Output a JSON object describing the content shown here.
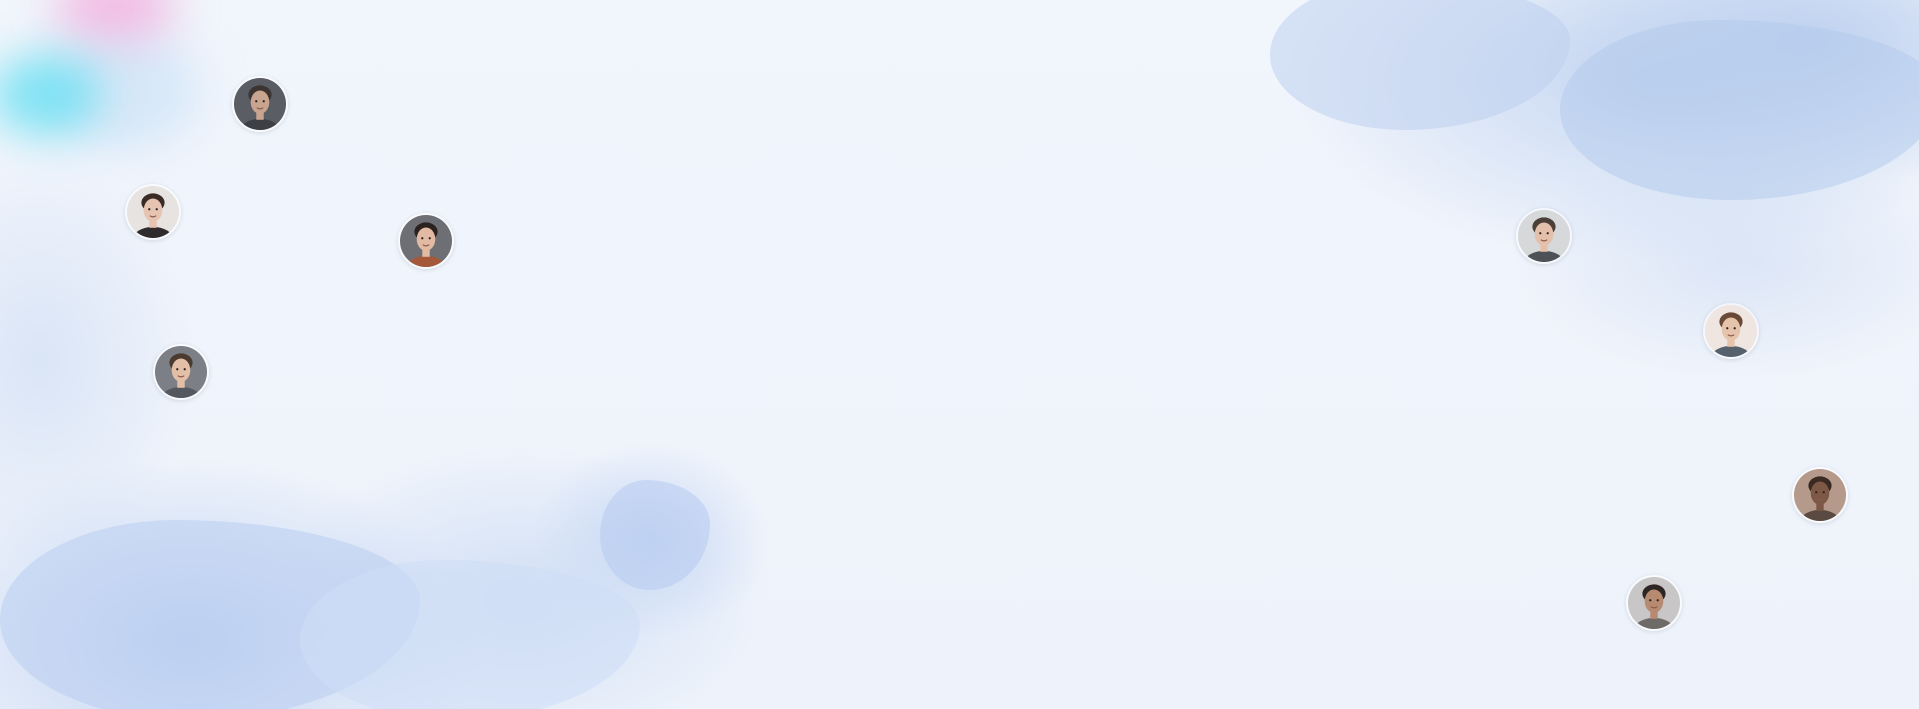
{
  "background": {
    "base_color": "#eef3fb",
    "accent_colors": [
      "#b8cdee",
      "#f596d2",
      "#46dcf0"
    ]
  },
  "avatars": [
    {
      "name": "avatar-man-dark-beard",
      "bg": "#5a5d63",
      "skin": "#c9a48f",
      "hair": "#3b3430",
      "shirt": "#3d3f44"
    },
    {
      "name": "avatar-woman-long-hair",
      "bg": "#e6e3e0",
      "skin": "#e7c3b1",
      "hair": "#3a2b25",
      "shirt": "#2f2a2c"
    },
    {
      "name": "avatar-woman-bangs",
      "bg": "#6d6f74",
      "skin": "#e2b9a2",
      "hair": "#2b2220",
      "shirt": "#a45a3a"
    },
    {
      "name": "avatar-man-smiling",
      "bg": "#7c7f86",
      "skin": "#e3bfa8",
      "hair": "#4a3a30",
      "shirt": "#55595f"
    },
    {
      "name": "avatar-man-short-hair",
      "bg": "#d7d8da",
      "skin": "#e4c0aa",
      "hair": "#4b4038",
      "shirt": "#4e5257"
    },
    {
      "name": "avatar-man-glasses",
      "bg": "#efe6e1",
      "skin": "#e6c4ac",
      "hair": "#6a4a37",
      "shirt": "#56616d"
    },
    {
      "name": "avatar-man-bald",
      "bg": "#b59a8b",
      "skin": "#7d5846",
      "hair": "#3a2a22",
      "shirt": "#5b4a42"
    },
    {
      "name": "avatar-woman-bun",
      "bg": "#c8c6c6",
      "skin": "#b78a72",
      "hair": "#2e2624",
      "shirt": "#6e6a68"
    }
  ]
}
